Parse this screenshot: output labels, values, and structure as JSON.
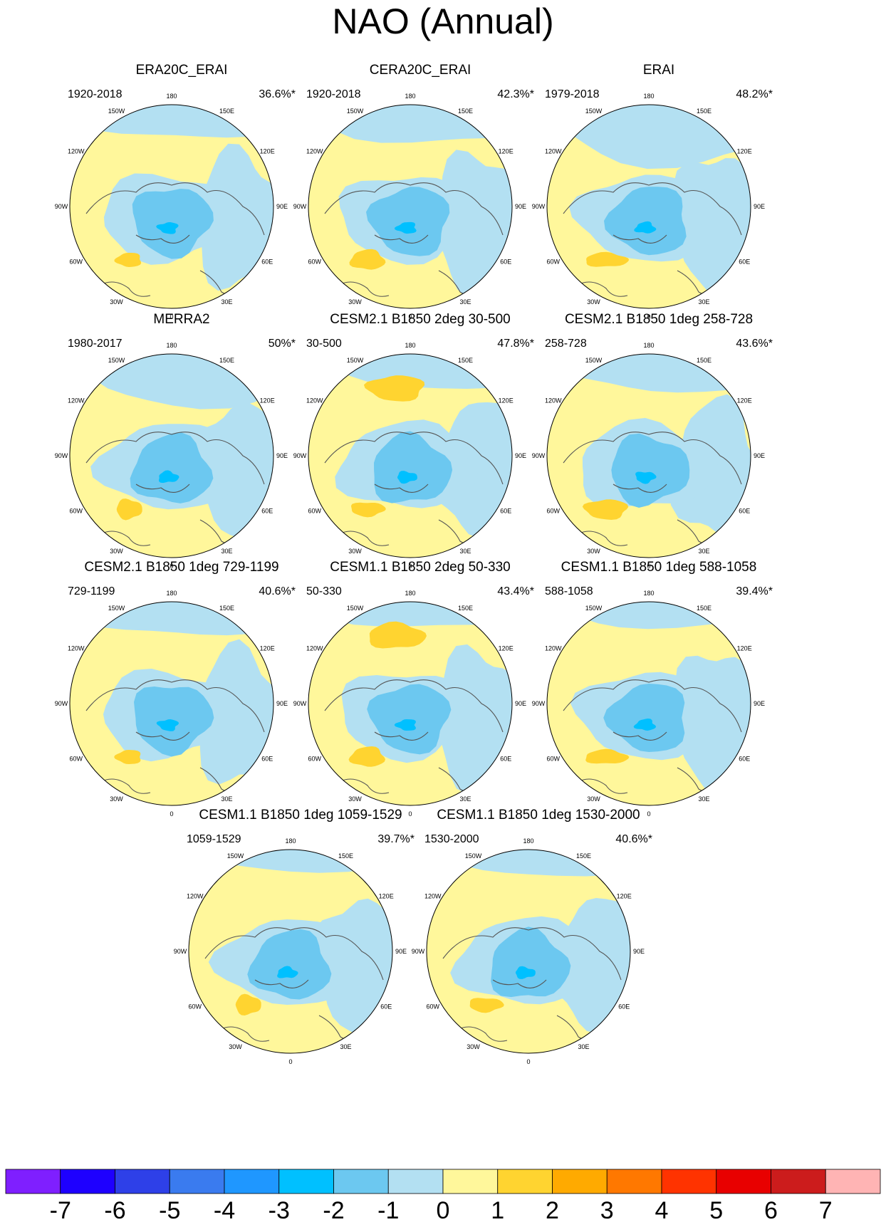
{
  "title": "NAO (Annual)",
  "longitude_labels": [
    "180",
    "150E",
    "120E",
    "90E",
    "60E",
    "30E",
    "0",
    "30W",
    "60W",
    "90W",
    "120W",
    "150W"
  ],
  "panels": [
    {
      "title": "ERA20C_ERAI",
      "period": "1920-2018",
      "pct": "36.6%*",
      "pos": 0
    },
    {
      "title": "CERA20C_ERAI",
      "period": "1920-2018",
      "pct": "42.3%*",
      "pos": 1
    },
    {
      "title": "ERAI",
      "period": "1979-2018",
      "pct": "48.2%*",
      "pos": 2
    },
    {
      "title": "MERRA2",
      "period": "1980-2017",
      "pct": "50%*",
      "pos": 3
    },
    {
      "title": "CESM2.1 B1850 2deg 30-500",
      "period": "30-500",
      "pct": "47.8%*",
      "pos": 4
    },
    {
      "title": "CESM2.1 B1850 1deg 258-728",
      "period": "258-728",
      "pct": "43.6%*",
      "pos": 5
    },
    {
      "title": "CESM2.1 B1850 1deg 729-1199",
      "period": "729-1199",
      "pct": "40.6%*",
      "pos": 6
    },
    {
      "title": "CESM1.1 B1850 2deg 50-330",
      "period": "50-330",
      "pct": "43.4%*",
      "pos": 7
    },
    {
      "title": "CESM1.1 B1850 1deg 588-1058",
      "period": "588-1058",
      "pct": "39.4%*",
      "pos": 8
    },
    {
      "title": "CESM1.1 B1850 1deg 1059-1529",
      "period": "1059-1529",
      "pct": "39.7%*",
      "pos": 9
    },
    {
      "title": "CESM1.1 B1850 1deg 1530-2000",
      "period": "1530-2000",
      "pct": "40.6%*",
      "pos": 10
    }
  ],
  "colorbar": {
    "colors": [
      "#7f1fff",
      "#1e00ff",
      "#2e40e8",
      "#3a7bef",
      "#1f97ff",
      "#00c0ff",
      "#6cc8f0",
      "#b3e0f2",
      "#fff79b",
      "#ffd430",
      "#ffaa00",
      "#ff7800",
      "#ff3300",
      "#e80000",
      "#cc1c1c",
      "#ffb4b4"
    ],
    "labels": [
      "-7",
      "-6",
      "-5",
      "-4",
      "-3",
      "-2",
      "-1",
      "0",
      "1",
      "2",
      "3",
      "4",
      "5",
      "6",
      "7"
    ]
  },
  "colors": {
    "positive_weak": "#fff79b",
    "positive": "#ffd430",
    "negative_weak": "#b3e0f2",
    "negative": "#6cc8f0",
    "negative_strong": "#00c0ff",
    "coast": "#555555"
  }
}
